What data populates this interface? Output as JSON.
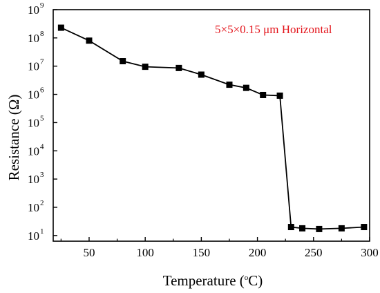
{
  "chart_data": {
    "type": "line",
    "title": "",
    "xlabel": {
      "main": "Temperature (",
      "sup": "o",
      "tail": "C)"
    },
    "ylabel": "Resistance (Ω)",
    "xlim": [
      18,
      300
    ],
    "ylim_log10": [
      0.8,
      9
    ],
    "y_scale": "log",
    "grid": false,
    "x_ticks": [
      50,
      100,
      150,
      200,
      250,
      300
    ],
    "y_ticks": [
      {
        "base": "10",
        "exp": "1",
        "log": 1
      },
      {
        "base": "10",
        "exp": "2",
        "log": 2
      },
      {
        "base": "10",
        "exp": "3",
        "log": 3
      },
      {
        "base": "10",
        "exp": "4",
        "log": 4
      },
      {
        "base": "10",
        "exp": "5",
        "log": 5
      },
      {
        "base": "10",
        "exp": "6",
        "log": 6
      },
      {
        "base": "10",
        "exp": "7",
        "log": 7
      },
      {
        "base": "10",
        "exp": "8",
        "log": 8
      },
      {
        "base": "10",
        "exp": "9",
        "log": 9
      }
    ],
    "annotation": {
      "text": "5×5×0.15 μm Horizontal",
      "color": "#e3141b"
    },
    "series": [
      {
        "marker": "square",
        "color": "#000000",
        "x": [
          25,
          50,
          80,
          100,
          130,
          150,
          175,
          190,
          205,
          220,
          230,
          240,
          255,
          275,
          295
        ],
        "y": [
          230000000,
          80000000,
          15000000,
          9500000,
          8600000,
          5000000,
          2200000,
          1700000,
          950000,
          900000,
          20,
          18,
          17,
          18,
          20
        ]
      }
    ]
  }
}
